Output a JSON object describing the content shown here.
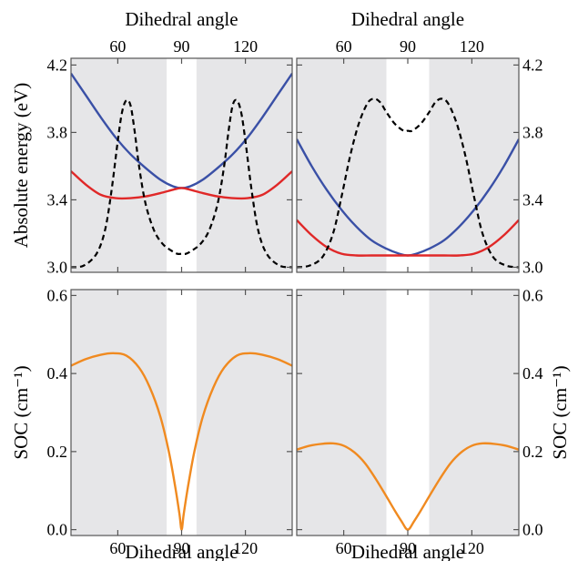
{
  "chart_data": [
    {
      "panel": "top-left",
      "type": "line",
      "xlabel_top": "Dihedral angle",
      "ylabel": "Absolute energy (eV)",
      "xlim": [
        38,
        142
      ],
      "ylim": [
        2.97,
        4.24
      ],
      "xticks": [
        60,
        90,
        120
      ],
      "yticks": [
        3.0,
        3.4,
        3.8,
        4.2
      ],
      "ytick_labels": [
        "3.0",
        "3.4",
        "3.8",
        "4.2"
      ],
      "shaded_regions": [
        [
          38,
          83
        ],
        [
          97,
          142
        ]
      ],
      "shade_color": "#e6e6e8",
      "series": [
        {
          "color": "#3a50a6",
          "style": "solid",
          "x": [
            38,
            45,
            52,
            59,
            66,
            73,
            80,
            86,
            90,
            94,
            100,
            107,
            114,
            121,
            128,
            135,
            142
          ],
          "y": [
            4.15,
            4.02,
            3.89,
            3.77,
            3.67,
            3.59,
            3.52,
            3.48,
            3.47,
            3.48,
            3.52,
            3.59,
            3.67,
            3.77,
            3.89,
            4.02,
            4.15
          ]
        },
        {
          "color": "#e02828",
          "style": "solid",
          "x": [
            38,
            45,
            52,
            59,
            66,
            73,
            80,
            86,
            90,
            94,
            100,
            107,
            114,
            121,
            128,
            135,
            142
          ],
          "y": [
            3.57,
            3.49,
            3.43,
            3.41,
            3.41,
            3.42,
            3.44,
            3.46,
            3.47,
            3.46,
            3.44,
            3.42,
            3.41,
            3.41,
            3.43,
            3.49,
            3.57
          ]
        },
        {
          "color": "#000000",
          "style": "dashed",
          "x": [
            38,
            44,
            50,
            54,
            57,
            60,
            62,
            64,
            66,
            68,
            70,
            73,
            77,
            81,
            85,
            88,
            90,
            92,
            95,
            99,
            103,
            107,
            110,
            112,
            114,
            116,
            118,
            120,
            123,
            126,
            130,
            136,
            142
          ],
          "y": [
            3.0,
            3.01,
            3.08,
            3.22,
            3.45,
            3.75,
            3.92,
            3.99,
            3.96,
            3.8,
            3.6,
            3.38,
            3.22,
            3.14,
            3.1,
            3.08,
            3.08,
            3.08,
            3.1,
            3.14,
            3.22,
            3.38,
            3.6,
            3.8,
            3.96,
            3.99,
            3.92,
            3.75,
            3.45,
            3.22,
            3.08,
            3.01,
            3.0
          ]
        }
      ]
    },
    {
      "panel": "top-right",
      "type": "line",
      "xlabel_top": "Dihedral angle",
      "ylabel": "",
      "xlim": [
        38,
        142
      ],
      "ylim": [
        2.97,
        4.24
      ],
      "xticks": [
        60,
        90,
        120
      ],
      "yticks": [
        3.0,
        3.4,
        3.8,
        4.2
      ],
      "ytick_labels": [
        "3.0",
        "3.4",
        "3.8",
        "4.2"
      ],
      "shaded_regions": [
        [
          38,
          80
        ],
        [
          100,
          142
        ]
      ],
      "shade_color": "#e6e6e8",
      "series": [
        {
          "color": "#3a50a6",
          "style": "solid",
          "x": [
            38,
            45,
            52,
            59,
            66,
            73,
            80,
            86,
            90,
            94,
            100,
            107,
            114,
            121,
            128,
            135,
            142
          ],
          "y": [
            3.76,
            3.6,
            3.46,
            3.34,
            3.24,
            3.16,
            3.11,
            3.08,
            3.07,
            3.08,
            3.11,
            3.16,
            3.24,
            3.34,
            3.46,
            3.6,
            3.76
          ]
        },
        {
          "color": "#e02828",
          "style": "solid",
          "x": [
            38,
            45,
            52,
            59,
            66,
            73,
            80,
            86,
            90,
            94,
            100,
            107,
            114,
            121,
            128,
            135,
            142
          ],
          "y": [
            3.28,
            3.19,
            3.12,
            3.08,
            3.07,
            3.07,
            3.07,
            3.07,
            3.07,
            3.07,
            3.07,
            3.07,
            3.07,
            3.08,
            3.12,
            3.19,
            3.28
          ]
        },
        {
          "color": "#000000",
          "style": "dashed",
          "x": [
            38,
            44,
            50,
            55,
            59,
            63,
            67,
            71,
            74,
            77,
            80,
            84,
            88,
            90,
            92,
            96,
            100,
            103,
            106,
            109,
            113,
            117,
            121,
            125,
            130,
            136,
            142
          ],
          "y": [
            3.0,
            3.01,
            3.06,
            3.2,
            3.42,
            3.66,
            3.85,
            3.97,
            4.0,
            3.98,
            3.92,
            3.85,
            3.81,
            3.81,
            3.81,
            3.85,
            3.92,
            3.98,
            4.0,
            3.97,
            3.85,
            3.66,
            3.42,
            3.2,
            3.06,
            3.01,
            3.0
          ]
        }
      ]
    },
    {
      "panel": "bottom-left",
      "type": "line",
      "xlabel": "Dihedral angle",
      "ylabel": "SOC (cm⁻¹)",
      "xlim": [
        38,
        142
      ],
      "ylim": [
        -0.015,
        0.615
      ],
      "xticks": [
        60,
        90,
        120
      ],
      "yticks": [
        0.0,
        0.2,
        0.4,
        0.6
      ],
      "ytick_labels": [
        "0.0",
        "0.2",
        "0.4",
        "0.6"
      ],
      "shaded_regions": [
        [
          38,
          83
        ],
        [
          97,
          142
        ]
      ],
      "shade_color": "#e6e6e8",
      "series": [
        {
          "color": "#f08a20",
          "style": "solid",
          "x": [
            38,
            45,
            52,
            58,
            64,
            70,
            75,
            80,
            84,
            87,
            89,
            90,
            91,
            93,
            96,
            100,
            105,
            110,
            116,
            122,
            128,
            135,
            142
          ],
          "y": [
            0.42,
            0.437,
            0.448,
            0.452,
            0.446,
            0.415,
            0.365,
            0.29,
            0.2,
            0.11,
            0.04,
            0.0,
            0.04,
            0.11,
            0.2,
            0.29,
            0.365,
            0.415,
            0.446,
            0.452,
            0.448,
            0.437,
            0.42
          ]
        }
      ]
    },
    {
      "panel": "bottom-right",
      "type": "line",
      "xlabel": "Dihedral angle",
      "ylabel": "SOC (cm⁻¹)",
      "xlim": [
        38,
        142
      ],
      "ylim": [
        -0.015,
        0.615
      ],
      "xticks": [
        60,
        90,
        120
      ],
      "yticks": [
        0.0,
        0.2,
        0.4,
        0.6
      ],
      "ytick_labels": [
        "0.0",
        "0.2",
        "0.4",
        "0.6"
      ],
      "shaded_regions": [
        [
          38,
          80
        ],
        [
          100,
          142
        ]
      ],
      "shade_color": "#e6e6e8",
      "series": [
        {
          "color": "#f08a20",
          "style": "solid",
          "x": [
            38,
            44,
            50,
            55,
            60,
            65,
            70,
            75,
            80,
            84,
            87,
            90,
            93,
            96,
            100,
            105,
            110,
            115,
            120,
            125,
            130,
            136,
            142
          ],
          "y": [
            0.205,
            0.215,
            0.22,
            0.221,
            0.215,
            0.198,
            0.17,
            0.13,
            0.085,
            0.048,
            0.022,
            0.0,
            0.022,
            0.048,
            0.085,
            0.13,
            0.17,
            0.198,
            0.215,
            0.221,
            0.22,
            0.215,
            0.205
          ]
        }
      ]
    }
  ]
}
